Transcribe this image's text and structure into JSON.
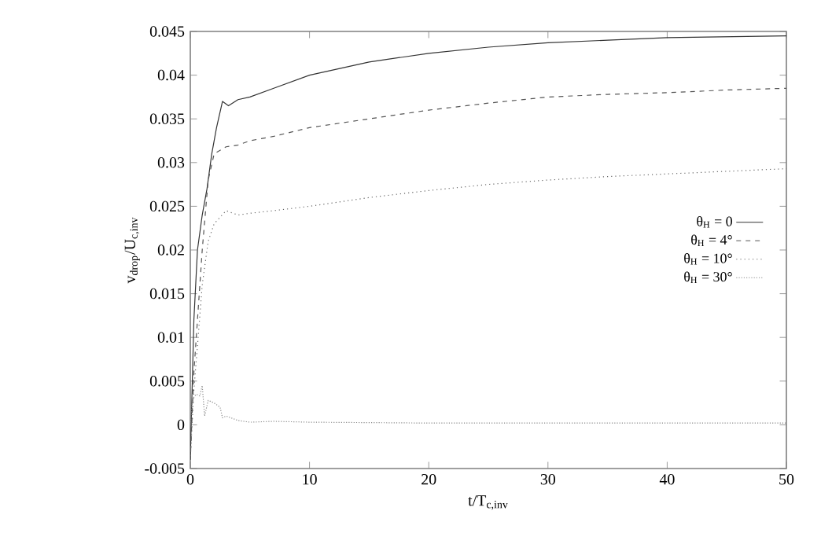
{
  "chart_data": {
    "type": "line",
    "xlabel": "t/T$_{c,inv}$",
    "ylabel": "v$_{drop}$/U$_{c,inv}$",
    "xlim": [
      0,
      50
    ],
    "ylim": [
      -0.005,
      0.045
    ],
    "xticks": [
      0,
      10,
      20,
      30,
      40,
      50
    ],
    "yticks": [
      -0.005,
      0,
      0.005,
      0.01,
      0.015,
      0.02,
      0.025,
      0.03,
      0.035,
      0.04,
      0.045
    ],
    "legend": "right",
    "grid": false,
    "marker": "none",
    "series": [
      {
        "name": "θ$_{H}$ = 0",
        "color": "#333333",
        "line_style": "solid",
        "x": [
          0,
          0.3,
          0.6,
          1,
          1.4,
          1.8,
          2.2,
          2.7,
          3.2,
          4,
          5,
          7,
          10,
          15,
          20,
          25,
          30,
          35,
          40,
          45,
          50
        ],
        "values": [
          -0.004,
          0.012,
          0.02,
          0.024,
          0.027,
          0.031,
          0.034,
          0.037,
          0.0365,
          0.0372,
          0.0375,
          0.0385,
          0.04,
          0.0415,
          0.0425,
          0.0432,
          0.0437,
          0.044,
          0.0443,
          0.0444,
          0.0445
        ]
      },
      {
        "name": "θ$_{H}$ = 4°",
        "color": "#555555",
        "line_style": "dashed",
        "x": [
          0,
          0.3,
          0.6,
          1,
          1.5,
          2,
          3,
          4,
          5,
          7,
          10,
          15,
          20,
          25,
          30,
          35,
          40,
          45,
          50
        ],
        "values": [
          -0.004,
          0.006,
          0.012,
          0.02,
          0.028,
          0.031,
          0.0318,
          0.032,
          0.0325,
          0.033,
          0.034,
          0.035,
          0.036,
          0.0368,
          0.0375,
          0.0378,
          0.038,
          0.0383,
          0.0385
        ]
      },
      {
        "name": "θ$_{H}$ = 10°",
        "color": "#666666",
        "line_style": "dotted",
        "x": [
          0,
          0.3,
          0.6,
          1,
          1.5,
          2,
          3,
          4,
          5,
          7,
          10,
          15,
          20,
          25,
          30,
          35,
          40,
          45,
          50
        ],
        "values": [
          -0.004,
          0.004,
          0.009,
          0.016,
          0.021,
          0.023,
          0.0245,
          0.024,
          0.0242,
          0.0245,
          0.025,
          0.026,
          0.0268,
          0.0275,
          0.028,
          0.0284,
          0.0287,
          0.029,
          0.0293
        ]
      },
      {
        "name": "θ$_{H}$ = 30°",
        "color": "#888888",
        "line_style": "densely dotted",
        "x": [
          0,
          0.2,
          0.5,
          0.8,
          1,
          1.2,
          1.5,
          2,
          2.5,
          2.7,
          3,
          4,
          5,
          7,
          10,
          20,
          30,
          40,
          50
        ],
        "values": [
          0,
          0.003,
          0.0035,
          0.0033,
          0.0045,
          0.001,
          0.0028,
          0.0025,
          0.002,
          0.0008,
          0.001,
          0.0005,
          0.0003,
          0.0004,
          0.0003,
          0.0002,
          0.0002,
          0.0002,
          0.0002
        ]
      }
    ]
  }
}
